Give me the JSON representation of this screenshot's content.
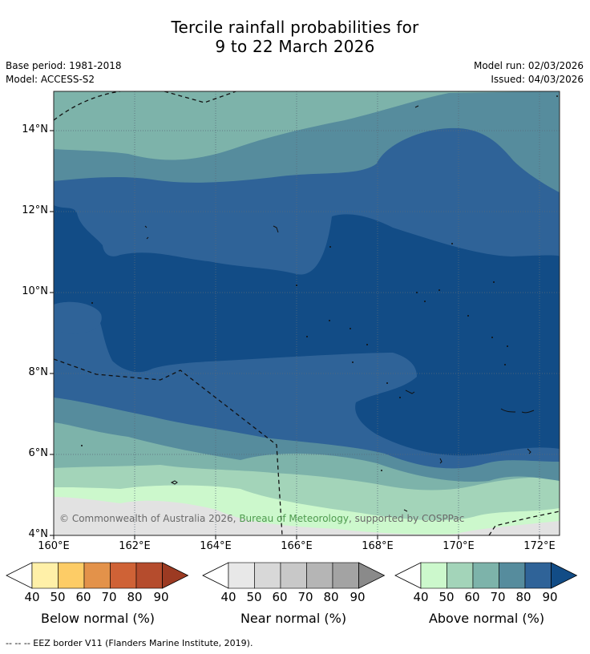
{
  "title": {
    "line1": "Tercile rainfall probabilities for",
    "line2": "9 to 22 March 2026"
  },
  "meta": {
    "base_period": "Base period: 1981-2018",
    "model": "Model: ACCESS-S2",
    "model_run": "Model run: 02/03/2026",
    "issued": "Issued: 04/03/2026"
  },
  "map": {
    "lat_labels": [
      "14°N",
      "12°N",
      "10°N",
      "8°N",
      "6°N",
      "4°N"
    ],
    "lon_labels": [
      "160°E",
      "162°E",
      "164°E",
      "166°E",
      "168°E",
      "170°E",
      "172°E"
    ]
  },
  "copyright": {
    "prefix": "© Commonwealth of Australia 2026, ",
    "bom": "Bureau of Meteorology",
    "suffix": ", supported by COSPPac"
  },
  "legend": {
    "below": {
      "label": "Below normal (%)",
      "ticks": [
        "40",
        "50",
        "60",
        "70",
        "80",
        "90"
      ],
      "colors": [
        "#fff0a8",
        "#fdcc66",
        "#e3924a",
        "#cf6236",
        "#b54c2d",
        "#9c3a22"
      ]
    },
    "near": {
      "label": "Near normal (%)",
      "ticks": [
        "40",
        "50",
        "60",
        "70",
        "80",
        "90"
      ],
      "colors": [
        "#e8e8e8",
        "#d8d8d8",
        "#c8c8c8",
        "#b5b5b5",
        "#a3a3a3",
        "#8a8a8a"
      ]
    },
    "above": {
      "label": "Above normal (%)",
      "ticks": [
        "40",
        "50",
        "60",
        "70",
        "80",
        "90"
      ],
      "colors": [
        "#ccf8cc",
        "#a3d4b9",
        "#7db3aa",
        "#568c9d",
        "#2f6398",
        "#124c86"
      ]
    }
  },
  "footer": {
    "text": "--  --  -- EEZ border V11 (Flanders Marine Institute, 2019)."
  }
}
